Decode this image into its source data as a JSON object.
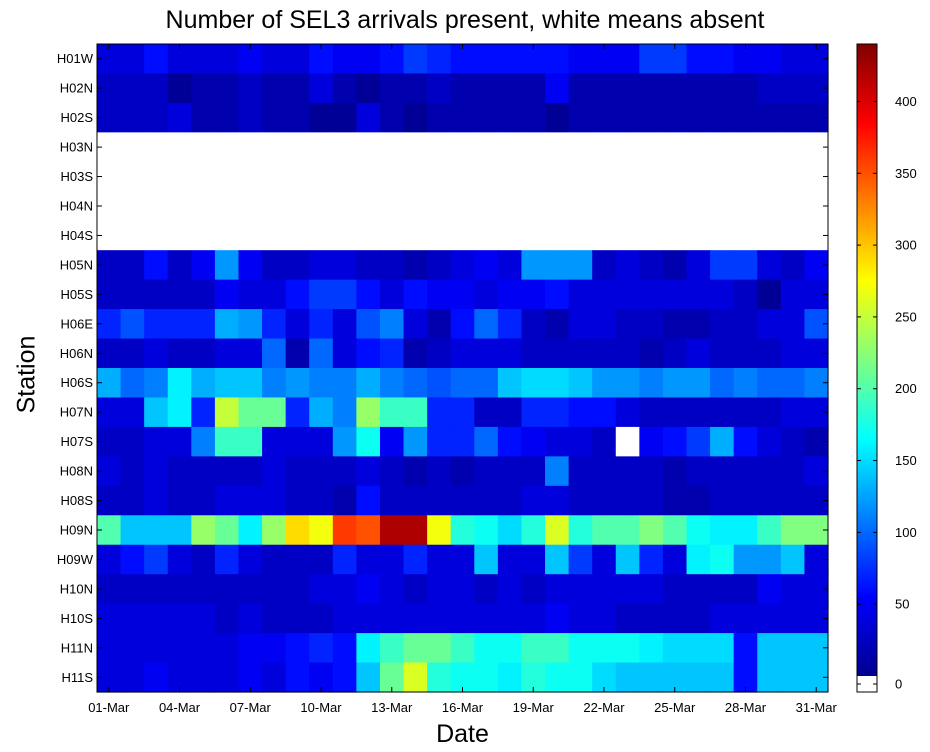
{
  "chart_data": {
    "type": "heatmap",
    "title": "Number of SEL3 arrivals present, white means absent",
    "xlabel": "Date",
    "ylabel": "Station",
    "x_tick_labels": [
      "01-Mar",
      "04-Mar",
      "07-Mar",
      "10-Mar",
      "13-Mar",
      "16-Mar",
      "19-Mar",
      "22-Mar",
      "25-Mar",
      "28-Mar",
      "31-Mar"
    ],
    "x_tick_days": [
      1,
      4,
      7,
      10,
      13,
      16,
      19,
      22,
      25,
      28,
      31
    ],
    "days": [
      1,
      2,
      3,
      4,
      5,
      6,
      7,
      8,
      9,
      10,
      11,
      12,
      13,
      14,
      15,
      16,
      17,
      18,
      19,
      20,
      21,
      22,
      23,
      24,
      25,
      26,
      27,
      28,
      29,
      30,
      31
    ],
    "stations": [
      "H01W",
      "H02N",
      "H02S",
      "H03N",
      "H03S",
      "H04N",
      "H04S",
      "H05N",
      "H05S",
      "H06E",
      "H06N",
      "H06S",
      "H07N",
      "H07S",
      "H08N",
      "H08S",
      "H09N",
      "H09W",
      "H10N",
      "H10S",
      "H11N",
      "H11S"
    ],
    "colorbar": {
      "range": [
        0,
        440
      ],
      "ticks": [
        0,
        50,
        100,
        150,
        200,
        250,
        300,
        350,
        400
      ],
      "colormap": "jet",
      "absent_color": "#ffffff"
    },
    "values": [
      [
        40,
        40,
        60,
        40,
        40,
        40,
        50,
        40,
        40,
        60,
        50,
        50,
        60,
        80,
        70,
        60,
        60,
        60,
        60,
        60,
        50,
        50,
        50,
        80,
        80,
        60,
        60,
        50,
        50,
        40,
        40
      ],
      [
        30,
        30,
        30,
        10,
        20,
        20,
        30,
        20,
        20,
        40,
        20,
        10,
        20,
        20,
        30,
        20,
        20,
        20,
        20,
        50,
        20,
        20,
        20,
        20,
        20,
        20,
        20,
        20,
        30,
        30,
        30
      ],
      [
        30,
        30,
        30,
        40,
        20,
        20,
        30,
        20,
        20,
        10,
        10,
        40,
        20,
        10,
        20,
        20,
        20,
        20,
        20,
        10,
        20,
        20,
        20,
        20,
        20,
        20,
        20,
        20,
        20,
        20,
        20
      ],
      [
        null,
        null,
        null,
        null,
        null,
        null,
        null,
        null,
        null,
        null,
        null,
        null,
        null,
        null,
        null,
        null,
        null,
        null,
        null,
        null,
        null,
        null,
        null,
        null,
        null,
        null,
        null,
        null,
        null,
        null,
        null
      ],
      [
        null,
        null,
        null,
        null,
        null,
        null,
        null,
        null,
        null,
        null,
        null,
        null,
        null,
        null,
        null,
        null,
        null,
        null,
        null,
        null,
        null,
        null,
        null,
        null,
        null,
        null,
        null,
        null,
        null,
        null,
        null
      ],
      [
        null,
        null,
        null,
        null,
        null,
        null,
        null,
        null,
        null,
        null,
        null,
        null,
        null,
        null,
        null,
        null,
        null,
        null,
        null,
        null,
        null,
        null,
        null,
        null,
        null,
        null,
        null,
        null,
        null,
        null,
        null
      ],
      [
        null,
        null,
        null,
        null,
        null,
        null,
        null,
        null,
        null,
        null,
        null,
        null,
        null,
        null,
        null,
        null,
        null,
        null,
        null,
        null,
        null,
        null,
        null,
        null,
        null,
        null,
        null,
        null,
        null,
        null,
        null
      ],
      [
        30,
        30,
        60,
        30,
        50,
        120,
        50,
        30,
        30,
        40,
        40,
        30,
        30,
        20,
        30,
        40,
        50,
        40,
        120,
        120,
        120,
        30,
        40,
        30,
        20,
        40,
        80,
        80,
        40,
        30,
        50
      ],
      [
        30,
        30,
        30,
        30,
        30,
        50,
        40,
        40,
        60,
        80,
        80,
        60,
        40,
        60,
        50,
        50,
        40,
        50,
        50,
        60,
        40,
        40,
        40,
        40,
        40,
        40,
        40,
        30,
        10,
        40,
        40
      ],
      [
        70,
        90,
        70,
        70,
        70,
        130,
        120,
        70,
        40,
        70,
        40,
        90,
        110,
        40,
        20,
        60,
        100,
        70,
        30,
        20,
        40,
        40,
        30,
        30,
        20,
        20,
        30,
        30,
        40,
        40,
        90
      ],
      [
        30,
        30,
        40,
        30,
        30,
        40,
        40,
        100,
        20,
        100,
        40,
        60,
        70,
        20,
        30,
        40,
        40,
        40,
        30,
        30,
        30,
        30,
        30,
        20,
        30,
        40,
        30,
        30,
        30,
        40,
        40
      ],
      [
        130,
        100,
        110,
        160,
        130,
        140,
        140,
        110,
        120,
        110,
        110,
        130,
        110,
        100,
        90,
        100,
        100,
        140,
        150,
        150,
        140,
        120,
        120,
        110,
        120,
        120,
        100,
        110,
        100,
        100,
        110
      ],
      [
        40,
        40,
        140,
        160,
        70,
        250,
        210,
        210,
        70,
        130,
        110,
        230,
        190,
        190,
        70,
        70,
        30,
        30,
        70,
        70,
        60,
        60,
        40,
        30,
        30,
        30,
        30,
        30,
        30,
        40,
        40
      ],
      [
        30,
        30,
        40,
        40,
        110,
        190,
        190,
        40,
        40,
        40,
        120,
        170,
        50,
        120,
        70,
        70,
        100,
        60,
        50,
        40,
        40,
        30,
        null,
        50,
        60,
        80,
        130,
        60,
        40,
        30,
        20
      ],
      [
        40,
        30,
        40,
        30,
        30,
        30,
        30,
        40,
        30,
        30,
        30,
        40,
        30,
        20,
        30,
        20,
        30,
        30,
        30,
        110,
        30,
        30,
        30,
        30,
        20,
        30,
        30,
        30,
        30,
        30,
        40
      ],
      [
        30,
        30,
        40,
        30,
        30,
        40,
        40,
        40,
        30,
        30,
        20,
        60,
        30,
        30,
        30,
        30,
        30,
        30,
        40,
        40,
        30,
        30,
        30,
        30,
        20,
        20,
        30,
        30,
        30,
        30,
        30
      ],
      [
        200,
        140,
        140,
        140,
        230,
        210,
        160,
        230,
        290,
        270,
        360,
        350,
        420,
        420,
        270,
        180,
        170,
        150,
        180,
        260,
        180,
        200,
        200,
        220,
        200,
        170,
        160,
        160,
        190,
        220,
        220
      ],
      [
        40,
        60,
        80,
        40,
        30,
        70,
        40,
        30,
        30,
        30,
        70,
        40,
        40,
        70,
        40,
        40,
        140,
        40,
        40,
        140,
        80,
        40,
        140,
        70,
        40,
        160,
        170,
        120,
        120,
        140,
        40
      ],
      [
        30,
        30,
        30,
        30,
        30,
        30,
        30,
        30,
        30,
        40,
        40,
        50,
        40,
        30,
        40,
        40,
        30,
        40,
        30,
        40,
        40,
        40,
        40,
        40,
        30,
        30,
        30,
        30,
        50,
        40,
        40
      ],
      [
        40,
        40,
        40,
        40,
        40,
        30,
        40,
        30,
        30,
        30,
        40,
        40,
        40,
        40,
        40,
        40,
        40,
        40,
        40,
        50,
        40,
        40,
        30,
        30,
        30,
        30,
        40,
        40,
        40,
        40,
        40
      ],
      [
        40,
        40,
        40,
        40,
        40,
        40,
        50,
        50,
        60,
        70,
        60,
        160,
        190,
        210,
        210,
        190,
        170,
        170,
        190,
        190,
        170,
        170,
        170,
        160,
        150,
        150,
        150,
        60,
        140,
        140,
        140
      ],
      [
        40,
        40,
        50,
        40,
        40,
        40,
        50,
        40,
        60,
        50,
        60,
        140,
        210,
        260,
        180,
        170,
        170,
        160,
        180,
        170,
        170,
        150,
        140,
        140,
        140,
        140,
        140,
        60,
        140,
        140,
        140
      ]
    ]
  }
}
